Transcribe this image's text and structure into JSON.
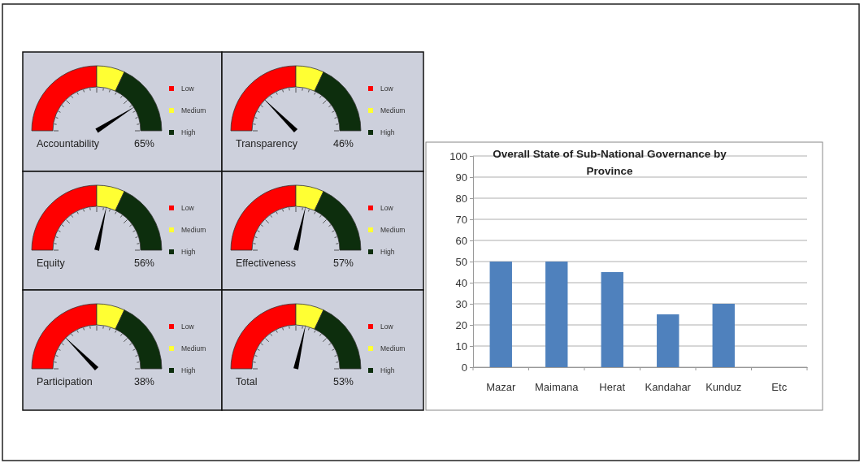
{
  "chart_data": [
    {
      "type": "donut",
      "title": "Accountability",
      "categories": [
        "Low",
        "Medium",
        "High"
      ],
      "values": [
        50,
        14,
        36
      ],
      "colors": [
        "#ff0000",
        "#ffff33",
        "#0d2e0d"
      ],
      "needle": "High",
      "annotations": [
        "65%"
      ],
      "legend": "right"
    },
    {
      "type": "donut",
      "title": "Transparency",
      "categories": [
        "Low",
        "Medium",
        "High"
      ],
      "values": [
        50,
        14,
        36
      ],
      "colors": [
        "#ff0000",
        "#ffff33",
        "#0d2e0d"
      ],
      "needle": "Low",
      "annotations": [
        "46%"
      ],
      "legend": "right"
    },
    {
      "type": "donut",
      "title": "Equity",
      "categories": [
        "Low",
        "Medium",
        "High"
      ],
      "values": [
        50,
        14,
        36
      ],
      "colors": [
        "#ff0000",
        "#ffff33",
        "#0d2e0d"
      ],
      "needle": "Medium",
      "annotations": [
        "56%"
      ],
      "legend": "right"
    },
    {
      "type": "donut",
      "title": "Effectiveness",
      "categories": [
        "Low",
        "Medium",
        "High"
      ],
      "values": [
        50,
        14,
        36
      ],
      "colors": [
        "#ff0000",
        "#ffff33",
        "#0d2e0d"
      ],
      "needle": "Medium",
      "annotations": [
        "57%"
      ],
      "legend": "right"
    },
    {
      "type": "donut",
      "title": "Participation",
      "categories": [
        "Low",
        "Medium",
        "High"
      ],
      "values": [
        50,
        14,
        36
      ],
      "colors": [
        "#ff0000",
        "#ffff33",
        "#0d2e0d"
      ],
      "needle": "Low",
      "annotations": [
        "38%"
      ],
      "legend": "right"
    },
    {
      "type": "donut",
      "title": "Total",
      "categories": [
        "Low",
        "Medium",
        "High"
      ],
      "values": [
        50,
        14,
        36
      ],
      "colors": [
        "#ff0000",
        "#ffff33",
        "#0d2e0d"
      ],
      "needle": "Medium",
      "annotations": [
        "53%"
      ],
      "legend": "right"
    },
    {
      "type": "bar",
      "title": "Overall State of Sub-National Governance by Province",
      "categories": [
        "Mazar",
        "Maimana",
        "Herat",
        "Kandahar",
        "Kunduz",
        "Etc"
      ],
      "values": [
        50,
        50,
        45,
        25,
        30,
        null
      ],
      "color": "#4f81bd",
      "ylim": [
        0,
        100
      ],
      "yticks": [
        0,
        10,
        20,
        30,
        40,
        50,
        60,
        70,
        80,
        90,
        100
      ],
      "grid": "y"
    }
  ]
}
